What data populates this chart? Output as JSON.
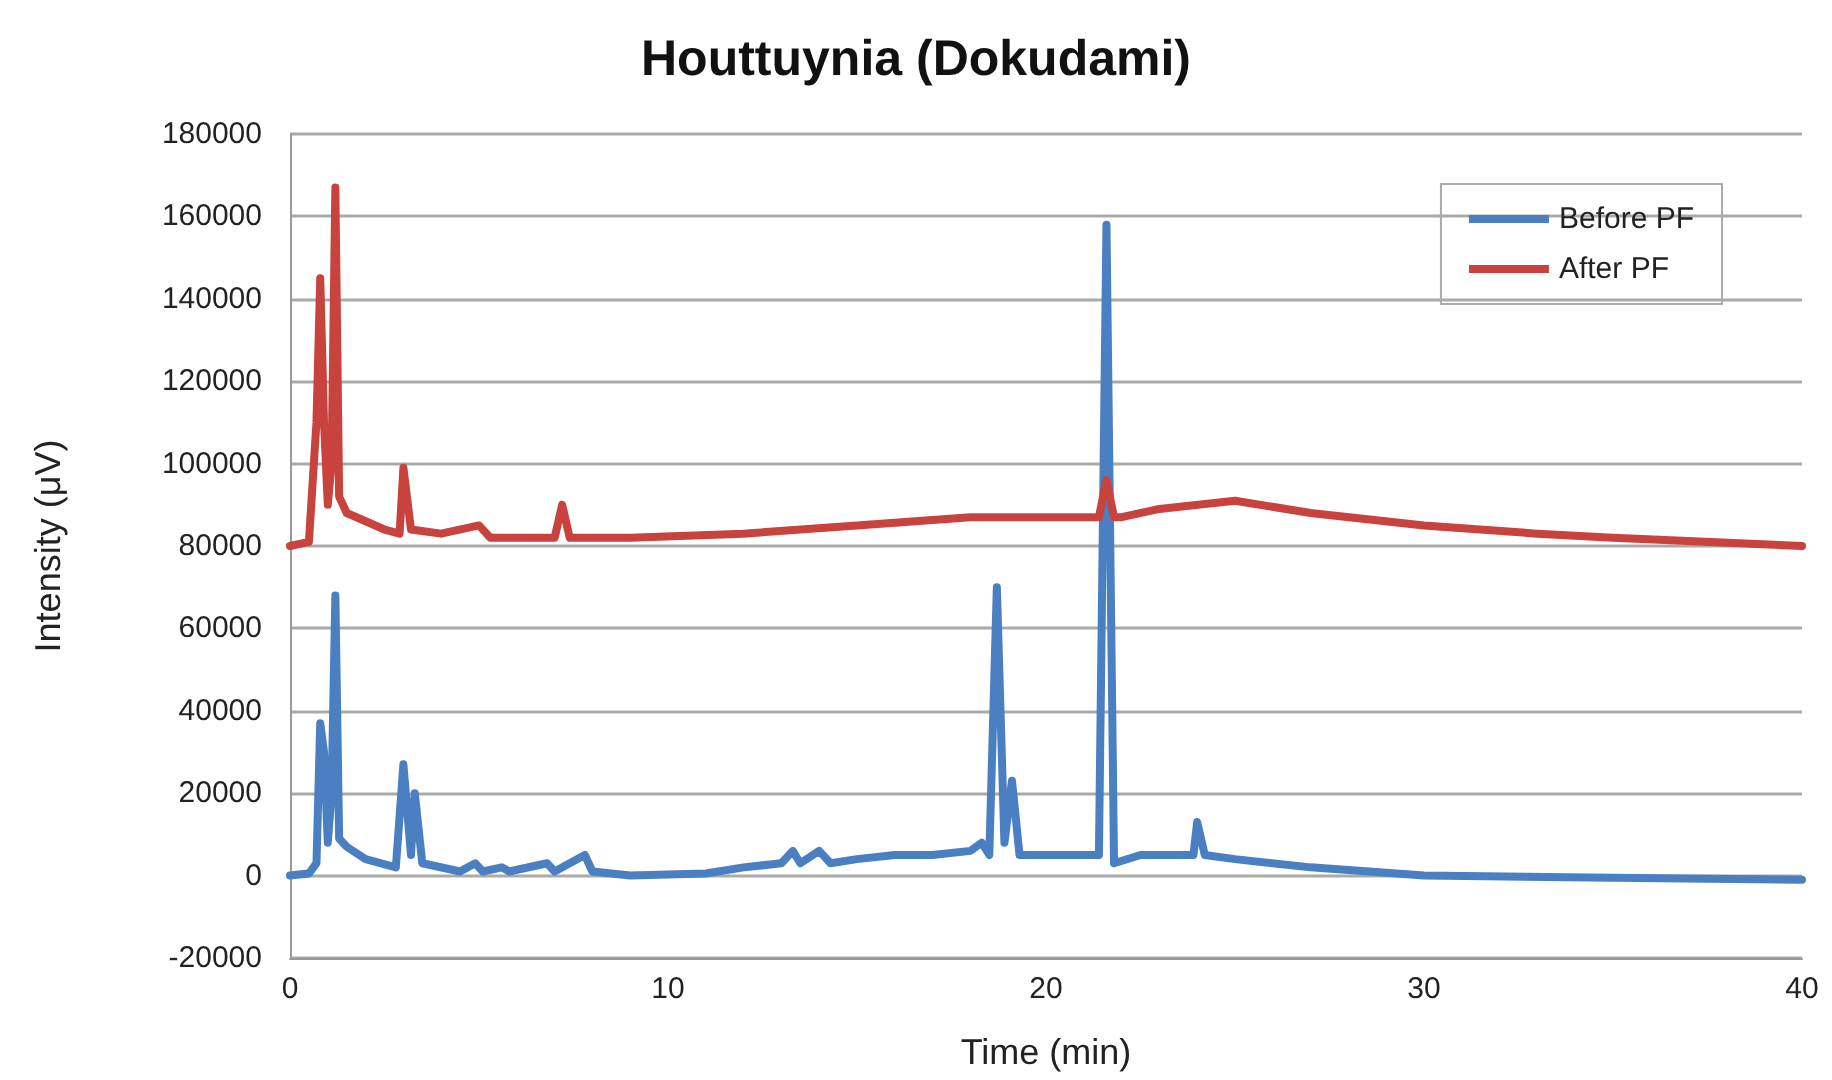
{
  "chart_data": {
    "type": "line",
    "title": "Houttuynia (Dokudami)",
    "xlabel": "Time (min)",
    "ylabel": "Intensity (μV)",
    "xlim": [
      0,
      40
    ],
    "xticks": [
      0,
      10,
      20,
      30,
      40
    ],
    "ylim": [
      -20000,
      180000
    ],
    "yticks": [
      -20000,
      0,
      20000,
      40000,
      60000,
      80000,
      100000,
      120000,
      140000,
      160000,
      180000
    ],
    "grid": "y",
    "legend": "top right",
    "marker": "none",
    "line_style": "solid",
    "series": [
      {
        "name": "Before PF",
        "color": "#4a7fc1",
        "x": [
          0,
          0.5,
          0.7,
          0.8,
          0.9,
          1.0,
          1.1,
          1.2,
          1.3,
          1.5,
          2,
          2.8,
          3.0,
          3.2,
          3.3,
          3.5,
          4.5,
          4.9,
          5.1,
          5.6,
          5.8,
          6.8,
          7.0,
          7.8,
          8.0,
          9,
          11,
          12,
          13,
          13.3,
          13.5,
          14,
          14.3,
          15,
          16,
          17,
          18,
          18.3,
          18.5,
          18.7,
          18.9,
          19.1,
          19.3,
          20,
          21,
          21.4,
          21.6,
          21.8,
          22.5,
          23,
          23.9,
          24.0,
          24.2,
          25,
          27,
          30,
          35,
          40
        ],
        "values": [
          0,
          500,
          3000,
          37000,
          30000,
          8000,
          20000,
          68000,
          9000,
          7000,
          4000,
          2000,
          27000,
          5000,
          20000,
          3000,
          1000,
          3000,
          1000,
          2000,
          1000,
          3000,
          1000,
          5000,
          1000,
          0,
          500,
          2000,
          3000,
          6000,
          3000,
          6000,
          3000,
          4000,
          5000,
          5000,
          6000,
          8000,
          5000,
          70000,
          8000,
          23000,
          5000,
          5000,
          5000,
          5000,
          158000,
          3000,
          5000,
          5000,
          5000,
          13000,
          5000,
          4000,
          2000,
          0,
          -500,
          -1000
        ]
      },
      {
        "name": "After PF",
        "color": "#c8423e",
        "x": [
          0,
          0.5,
          0.7,
          0.8,
          0.9,
          1.0,
          1.1,
          1.2,
          1.3,
          1.5,
          2,
          2.5,
          2.9,
          3.0,
          3.2,
          4,
          5,
          5.3,
          6,
          7,
          7.2,
          7.4,
          9,
          12,
          15,
          18,
          21.4,
          21.6,
          21.8,
          22,
          23,
          25,
          27,
          30,
          33,
          35,
          40
        ],
        "values": [
          80000,
          81000,
          110000,
          145000,
          110000,
          90000,
          100000,
          167000,
          92000,
          88000,
          86000,
          84000,
          83000,
          99000,
          84000,
          83000,
          85000,
          82000,
          82000,
          82000,
          90000,
          82000,
          82000,
          83000,
          85000,
          87000,
          87000,
          96000,
          87000,
          87000,
          89000,
          91000,
          88000,
          85000,
          83000,
          82000,
          80000
        ]
      }
    ]
  }
}
